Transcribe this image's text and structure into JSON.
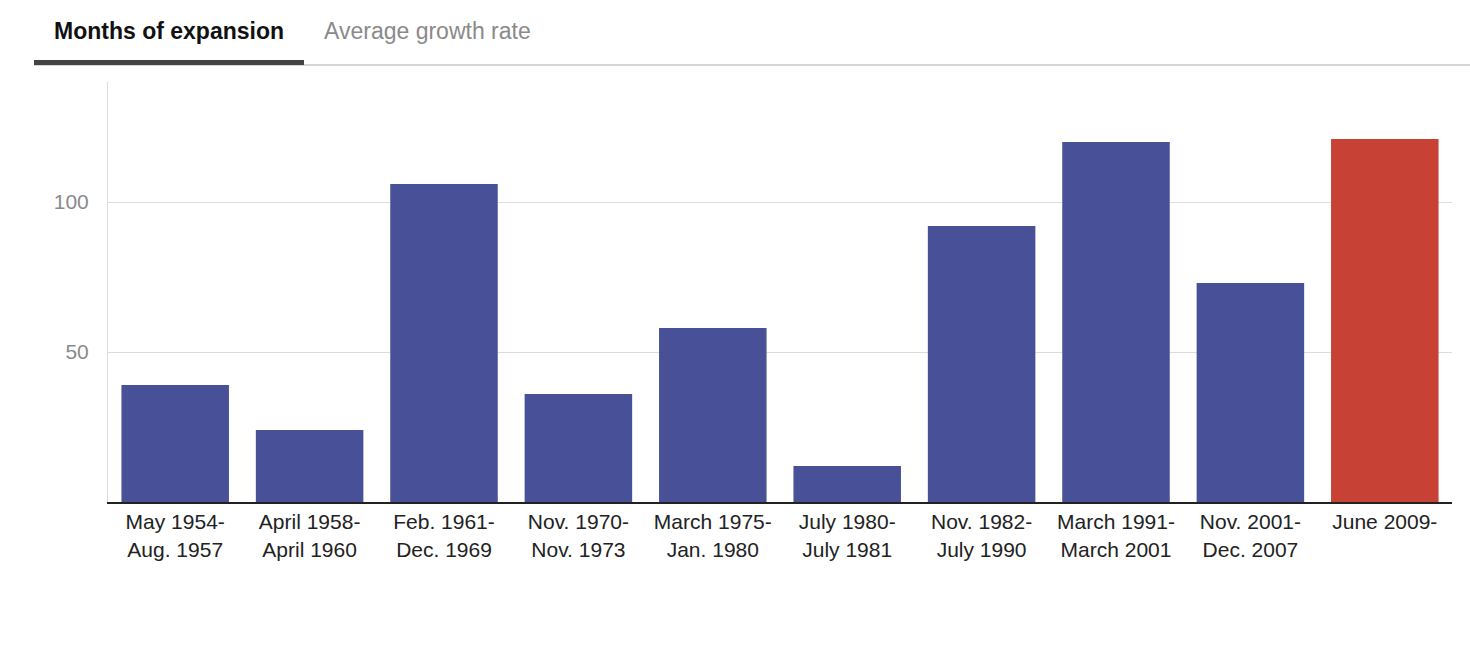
{
  "tabs": [
    {
      "label": "Months of expansion",
      "selected": true
    },
    {
      "label": "Average growth rate",
      "selected": false
    }
  ],
  "chart_data": {
    "type": "bar",
    "categories": [
      "May 1954-Aug. 1957",
      "April 1958-April 1960",
      "Feb. 1961-Dec. 1969",
      "Nov. 1970-Nov. 1973",
      "March 1975-Jan. 1980",
      "July 1980-July 1981",
      "Nov. 1982-July 1990",
      "March 1991-March 2001",
      "Nov. 2001-Dec. 2007",
      "June 2009-"
    ],
    "values": [
      39,
      24,
      106,
      36,
      58,
      12,
      92,
      120,
      73,
      121
    ],
    "colors": [
      "#485197",
      "#485197",
      "#485197",
      "#485197",
      "#485197",
      "#485197",
      "#485197",
      "#485197",
      "#485197",
      "#c74234"
    ],
    "ylim": [
      0,
      140
    ],
    "yticks": [
      50,
      100
    ],
    "grid": true
  }
}
